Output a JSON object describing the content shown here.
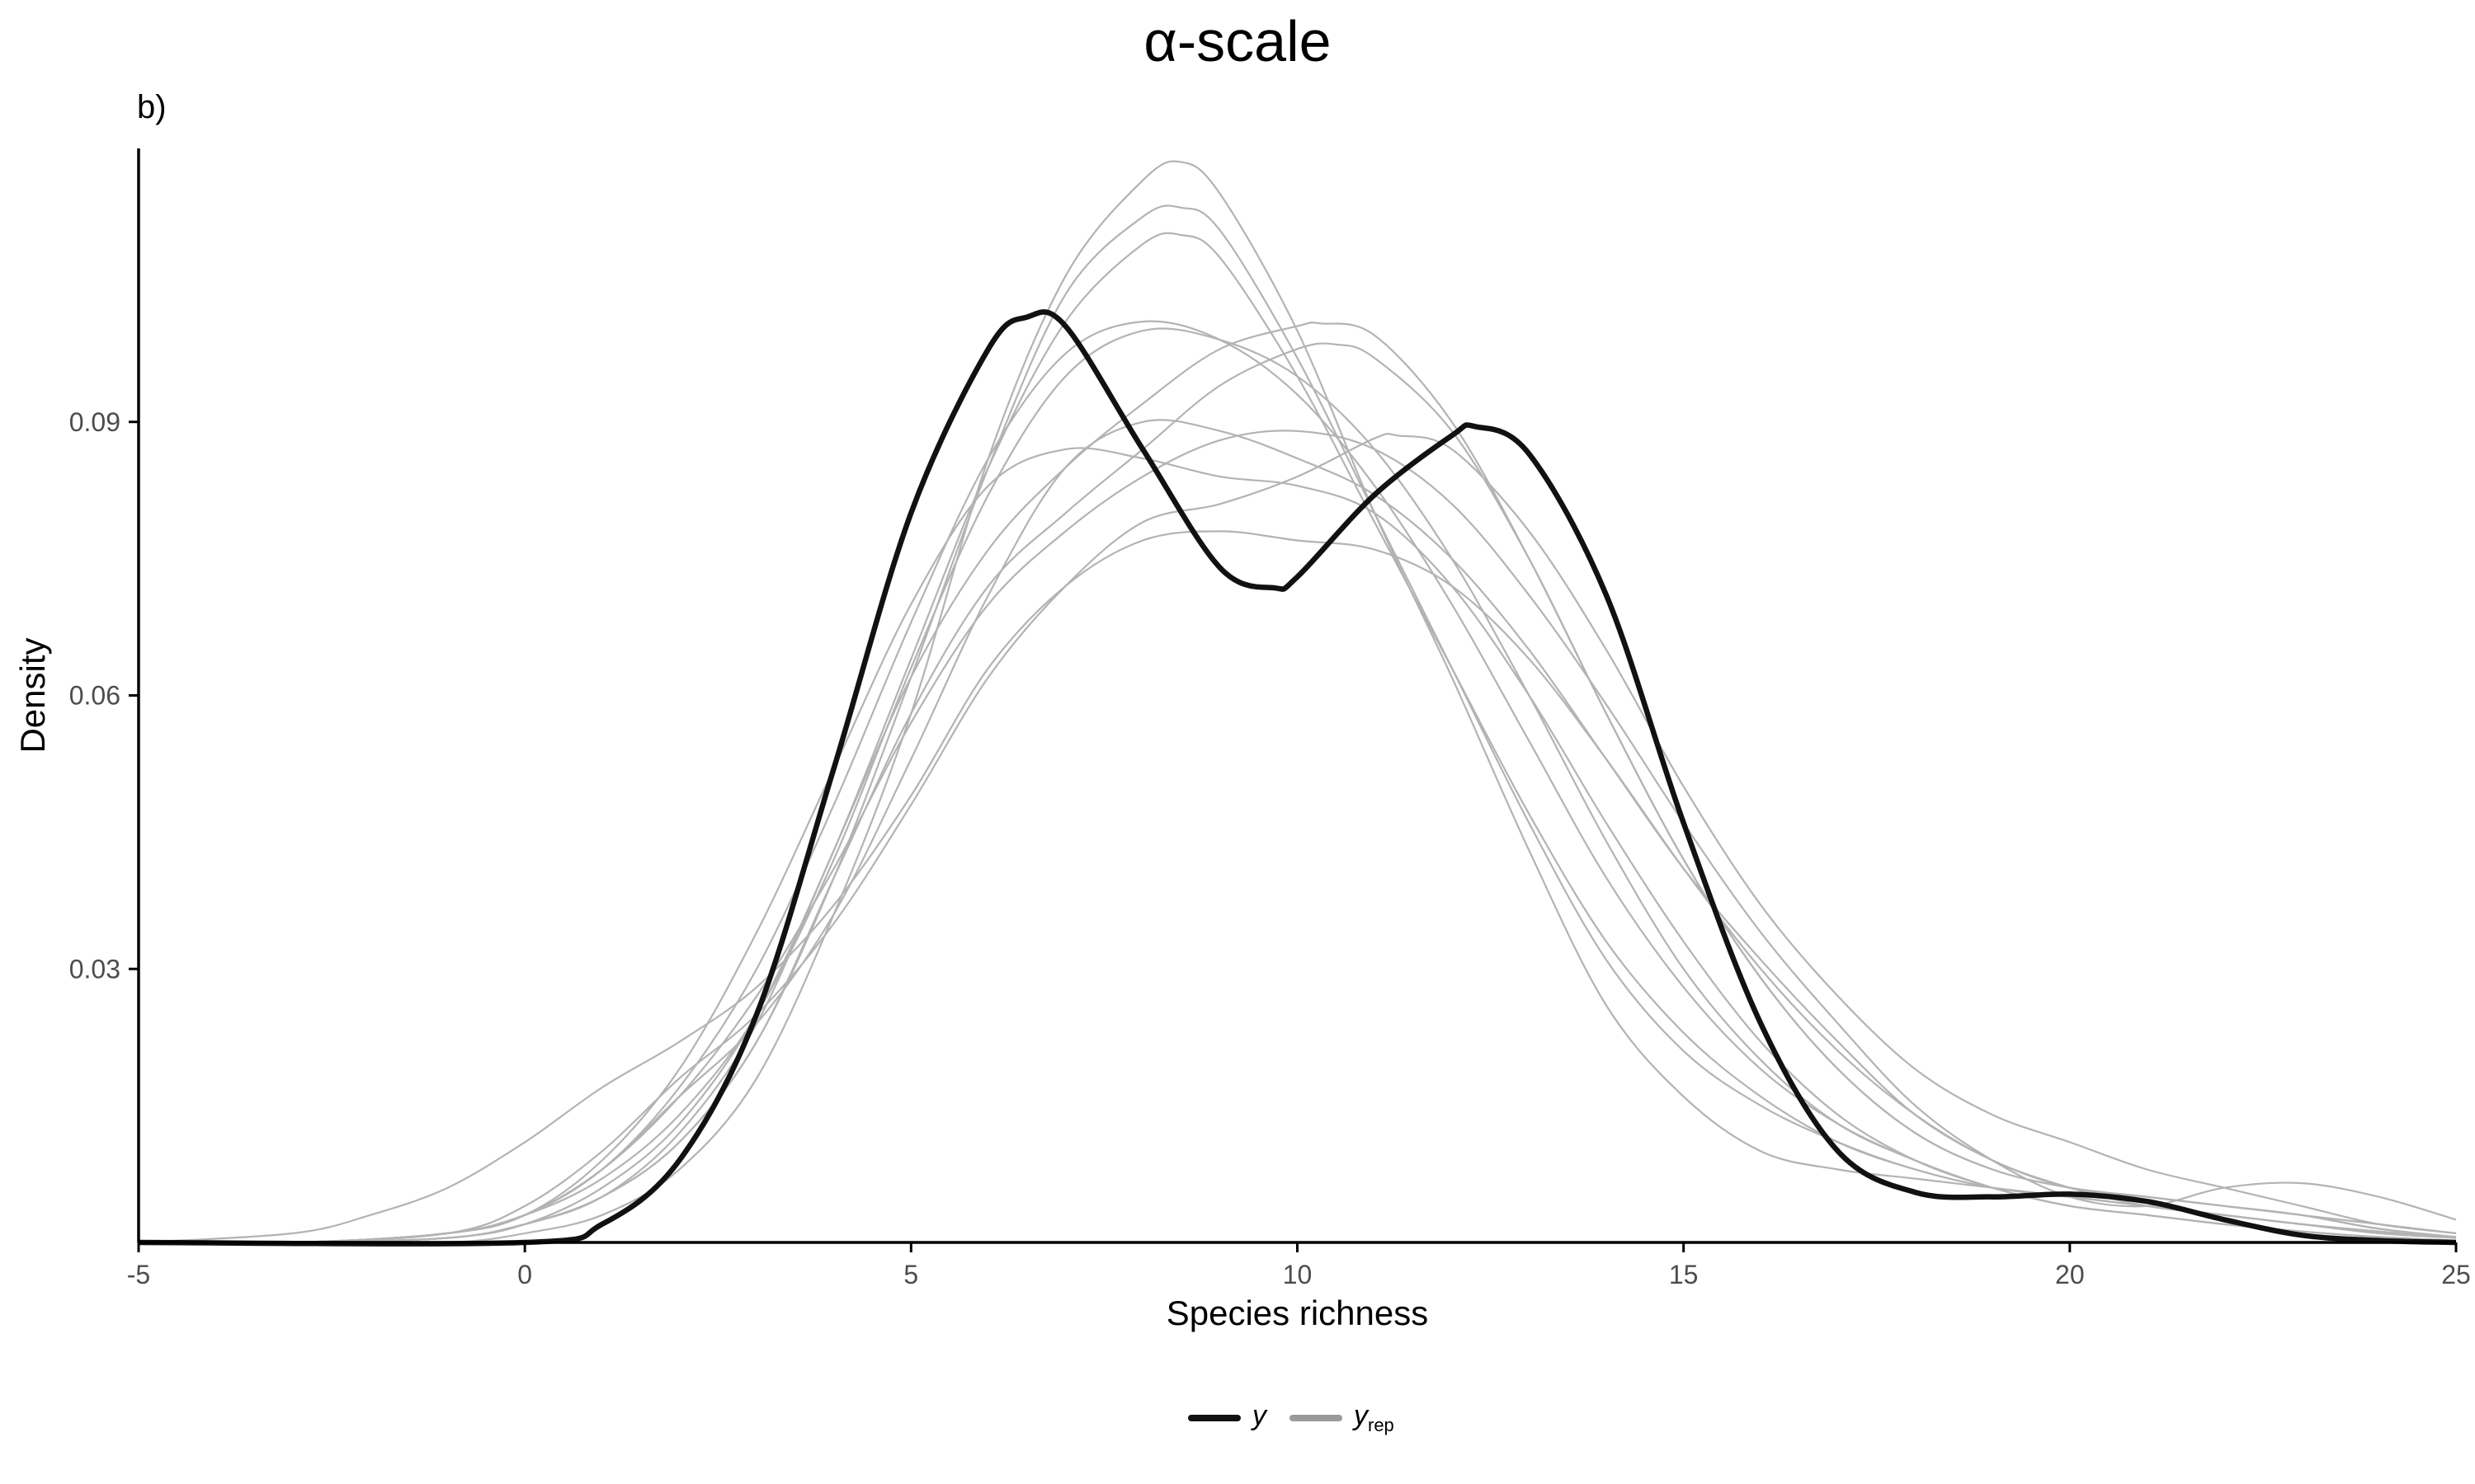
{
  "chart_data": {
    "type": "line",
    "title": "α-scale",
    "tag": "b)",
    "xlabel": "Species richness",
    "ylabel": "Density",
    "xlim": [
      -5,
      25
    ],
    "ylim": [
      0,
      0.12
    ],
    "x_ticks": [
      -5,
      0,
      5,
      10,
      15,
      20,
      25
    ],
    "x_tick_labels": [
      "-5",
      "0",
      "5",
      "10",
      "15",
      "20",
      "25"
    ],
    "y_ticks": [
      0.03,
      0.06,
      0.09
    ],
    "y_tick_labels": [
      "0.03",
      "0.06",
      "0.09"
    ],
    "grid": false,
    "legend_position": "bottom",
    "colors": {
      "y": "#111111",
      "yrep": "#b3b3b3",
      "yrep_legend": "#9a9a9a",
      "axis": "#000000",
      "tick_text": "#4d4d4d"
    },
    "legend": [
      {
        "label": "y",
        "sub": ""
      },
      {
        "label": "y",
        "sub": "rep"
      }
    ],
    "series": [
      {
        "name": "y",
        "x": [
          -5,
          0,
          1,
          2,
          3,
          4,
          5,
          6,
          6.5,
          7,
          8,
          9,
          9.7,
          10,
          11,
          12,
          12.3,
          13,
          14,
          15,
          16,
          17,
          18,
          19,
          20,
          21,
          22,
          23,
          24,
          25
        ],
        "y": [
          0,
          0,
          0.002,
          0.009,
          0.025,
          0.052,
          0.08,
          0.098,
          0.1015,
          0.1005,
          0.087,
          0.074,
          0.0718,
          0.073,
          0.082,
          0.0885,
          0.0895,
          0.0865,
          0.071,
          0.046,
          0.024,
          0.01,
          0.0055,
          0.005,
          0.0053,
          0.0045,
          0.0025,
          0.0008,
          0.0002,
          0
        ]
      },
      {
        "name": "",
        "x": [
          -5,
          -3,
          -1,
          0,
          1,
          2,
          3,
          4,
          5,
          6,
          7,
          8,
          8.5,
          9,
          10,
          11,
          12,
          13,
          14,
          15,
          16,
          17,
          18,
          19,
          20,
          21,
          22,
          23,
          24,
          25
        ],
        "y": [
          0,
          0,
          0,
          0.001,
          0.003,
          0.008,
          0.018,
          0.036,
          0.058,
          0.086,
          0.106,
          0.1165,
          0.1185,
          0.115,
          0.1,
          0.08,
          0.062,
          0.043,
          0.026,
          0.016,
          0.01,
          0.008,
          0.007,
          0.006,
          0.005,
          0.004,
          0.003,
          0.002,
          0.0012,
          0.0005
        ]
      },
      {
        "name": "",
        "x": [
          -5,
          -3,
          -1,
          0,
          1,
          2,
          3,
          4,
          5,
          6,
          7,
          8,
          8.5,
          9,
          10,
          11,
          12,
          13,
          14,
          15,
          16,
          17,
          18,
          19,
          20,
          21,
          22,
          23,
          24,
          25
        ],
        "y": [
          0,
          0,
          0.0005,
          0.002,
          0.005,
          0.011,
          0.022,
          0.04,
          0.062,
          0.085,
          0.104,
          0.1125,
          0.1135,
          0.111,
          0.097,
          0.08,
          0.063,
          0.046,
          0.031,
          0.021,
          0.015,
          0.011,
          0.008,
          0.006,
          0.005,
          0.004,
          0.003,
          0.002,
          0.0012,
          0.0005
        ]
      },
      {
        "name": "",
        "x": [
          -5,
          -3,
          -1,
          0,
          1,
          2,
          3,
          4,
          5,
          6,
          7,
          8,
          8.5,
          9,
          10,
          11,
          12,
          13,
          14,
          15,
          16,
          17,
          18,
          19,
          20,
          21,
          22,
          23,
          24,
          25
        ],
        "y": [
          0,
          0,
          0.0005,
          0.002,
          0.006,
          0.013,
          0.025,
          0.043,
          0.064,
          0.085,
          0.101,
          0.1095,
          0.1105,
          0.108,
          0.095,
          0.079,
          0.063,
          0.047,
          0.033,
          0.023,
          0.016,
          0.011,
          0.008,
          0.006,
          0.005,
          0.004,
          0.003,
          0.002,
          0.0012,
          0.0005
        ]
      },
      {
        "name": "",
        "x": [
          -5,
          -3,
          -1,
          0,
          1,
          2,
          3,
          4,
          5,
          6,
          7,
          8,
          9,
          10,
          11,
          12,
          13,
          14,
          15,
          16,
          17,
          18,
          19,
          20,
          21,
          22,
          23,
          24,
          25
        ],
        "y": [
          0,
          0,
          0.001,
          0.003,
          0.007,
          0.014,
          0.025,
          0.042,
          0.063,
          0.082,
          0.095,
          0.1,
          0.099,
          0.095,
          0.087,
          0.075,
          0.06,
          0.044,
          0.03,
          0.02,
          0.013,
          0.009,
          0.006,
          0.004,
          0.003,
          0.002,
          0.0012,
          0.0006,
          0.0002
        ]
      },
      {
        "name": "",
        "x": [
          -5,
          -3,
          -1,
          0,
          1,
          2,
          3,
          4,
          5,
          6,
          7,
          8,
          9,
          10,
          11,
          12,
          13,
          14,
          15,
          16,
          17,
          18,
          19,
          20,
          21,
          22,
          23,
          24,
          25
        ],
        "y": [
          0,
          0,
          0.001,
          0.003,
          0.008,
          0.017,
          0.03,
          0.048,
          0.068,
          0.086,
          0.0975,
          0.101,
          0.099,
          0.093,
          0.083,
          0.07,
          0.055,
          0.04,
          0.028,
          0.019,
          0.013,
          0.009,
          0.006,
          0.004,
          0.003,
          0.002,
          0.0012,
          0.0006,
          0.0002
        ]
      },
      {
        "name": "",
        "x": [
          -5,
          -3,
          -1,
          0,
          1,
          2,
          3,
          4,
          5,
          6,
          7,
          8,
          9,
          10,
          11,
          12,
          13,
          14,
          15,
          16,
          17,
          18,
          19,
          20,
          21,
          22,
          23,
          24,
          25
        ],
        "y": [
          0,
          0,
          0.001,
          0.003,
          0.009,
          0.019,
          0.034,
          0.052,
          0.07,
          0.083,
          0.087,
          0.086,
          0.084,
          0.083,
          0.08,
          0.072,
          0.06,
          0.046,
          0.033,
          0.022,
          0.014,
          0.009,
          0.006,
          0.004,
          0.003,
          0.002,
          0.0012,
          0.0006,
          0.0002
        ]
      },
      {
        "name": "",
        "x": [
          -5,
          -3,
          -1,
          0,
          1,
          2,
          3,
          4,
          5,
          6,
          7,
          8,
          9,
          10,
          10.5,
          11,
          12,
          13,
          14,
          15,
          16,
          17,
          18,
          19,
          20,
          21,
          22,
          23,
          24,
          25
        ],
        "y": [
          0,
          0,
          0.0005,
          0.002,
          0.005,
          0.011,
          0.022,
          0.04,
          0.058,
          0.072,
          0.08,
          0.087,
          0.094,
          0.098,
          0.0985,
          0.097,
          0.089,
          0.075,
          0.058,
          0.042,
          0.029,
          0.019,
          0.012,
          0.008,
          0.006,
          0.005,
          0.004,
          0.003,
          0.0015,
          0.0006
        ]
      },
      {
        "name": "",
        "x": [
          -5,
          -3,
          -1,
          0,
          1,
          2,
          3,
          4,
          5,
          6,
          7,
          8,
          9,
          10,
          10.3,
          11,
          12,
          13,
          14,
          15,
          16,
          17,
          18,
          19,
          20,
          21,
          22,
          23,
          24,
          25
        ],
        "y": [
          0,
          0,
          0.0005,
          0.002,
          0.005,
          0.012,
          0.024,
          0.043,
          0.062,
          0.076,
          0.085,
          0.092,
          0.098,
          0.1005,
          0.1008,
          0.0995,
          0.09,
          0.075,
          0.058,
          0.042,
          0.029,
          0.019,
          0.012,
          0.008,
          0.006,
          0.005,
          0.004,
          0.003,
          0.0015,
          0.0006
        ]
      },
      {
        "name": "",
        "x": [
          -5,
          -3,
          -1,
          0,
          1,
          2,
          3,
          4,
          5,
          6,
          7,
          8,
          9,
          10,
          11,
          11.3,
          12,
          13,
          14,
          15,
          16,
          17,
          18,
          19,
          20,
          21,
          22,
          23,
          24,
          25
        ],
        "y": [
          0,
          0,
          0.001,
          0.004,
          0.01,
          0.018,
          0.025,
          0.035,
          0.048,
          0.062,
          0.072,
          0.079,
          0.081,
          0.084,
          0.0882,
          0.0885,
          0.087,
          0.078,
          0.065,
          0.05,
          0.037,
          0.027,
          0.019,
          0.014,
          0.011,
          0.008,
          0.006,
          0.004,
          0.002,
          0.001
        ]
      },
      {
        "name": "",
        "x": [
          -5,
          -3,
          -2,
          -1,
          0,
          1,
          2,
          3,
          4,
          5,
          6,
          7,
          8,
          9,
          10,
          11,
          12,
          13,
          14,
          15,
          16,
          17,
          18,
          19,
          20,
          21,
          22,
          23,
          24,
          25
        ],
        "y": [
          0,
          0.001,
          0.003,
          0.006,
          0.011,
          0.017,
          0.022,
          0.028,
          0.037,
          0.049,
          0.063,
          0.072,
          0.077,
          0.078,
          0.077,
          0.076,
          0.072,
          0.064,
          0.053,
          0.041,
          0.03,
          0.021,
          0.014,
          0.009,
          0.006,
          0.005,
          0.004,
          0.003,
          0.002,
          0.001
        ]
      },
      {
        "name": "",
        "x": [
          -5,
          -3,
          -1,
          0,
          1,
          2,
          3,
          4,
          5,
          6,
          7,
          8,
          9,
          10,
          11,
          12,
          13,
          14,
          15,
          16,
          17,
          18,
          19,
          20,
          21,
          22,
          23,
          24,
          25
        ],
        "y": [
          0,
          0,
          0.001,
          0.003,
          0.008,
          0.016,
          0.027,
          0.041,
          0.057,
          0.07,
          0.078,
          0.084,
          0.088,
          0.089,
          0.087,
          0.081,
          0.071,
          0.059,
          0.046,
          0.034,
          0.024,
          0.015,
          0.009,
          0.005,
          0.004,
          0.006,
          0.0065,
          0.005,
          0.0025
        ]
      },
      {
        "name": "",
        "x": [
          -5,
          -3,
          -1,
          0,
          1,
          2,
          3,
          4,
          5,
          6,
          7,
          8,
          9,
          10,
          11,
          12,
          13,
          14,
          15,
          16,
          17,
          18,
          19,
          20,
          21,
          22,
          23,
          24,
          25
        ],
        "y": [
          0,
          0,
          0.001,
          0.003,
          0.008,
          0.016,
          0.024,
          0.036,
          0.053,
          0.071,
          0.085,
          0.09,
          0.089,
          0.086,
          0.082,
          0.075,
          0.065,
          0.053,
          0.041,
          0.031,
          0.022,
          0.014,
          0.009,
          0.006,
          0.004,
          0.003,
          0.002,
          0.001,
          0.0005
        ]
      }
    ]
  }
}
